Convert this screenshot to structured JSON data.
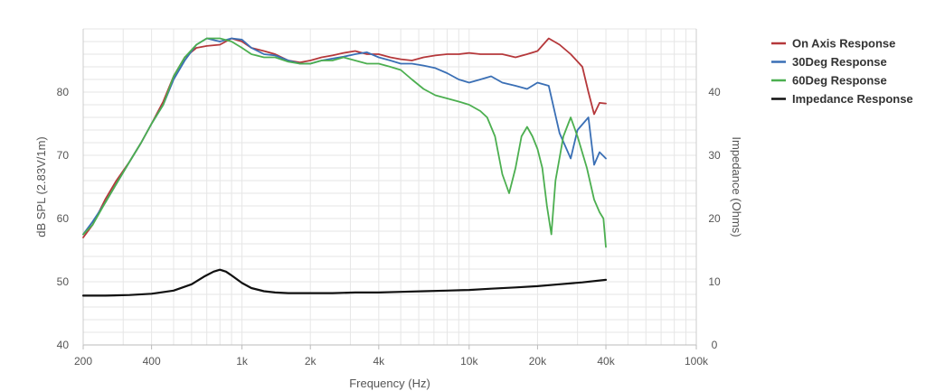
{
  "chart_data": {
    "type": "line",
    "xlabel": "Frequency (Hz)",
    "ylabel": "dB SPL (2.83V/1m)",
    "y2label": "Impedance (Ohms)",
    "xscale": "log",
    "xlim": [
      200,
      100000
    ],
    "ylim": [
      40,
      90
    ],
    "y2lim": [
      0,
      50
    ],
    "x_tick_values": [
      200,
      400,
      1000,
      2000,
      4000,
      10000,
      20000,
      40000,
      100000
    ],
    "x_tick_labels": [
      "200",
      "400",
      "1k",
      "2k",
      "4k",
      "10k",
      "20k",
      "40k",
      "100k"
    ],
    "y_tick_values": [
      40,
      50,
      60,
      70,
      80
    ],
    "y_tick_labels": [
      "40",
      "50",
      "60",
      "70",
      "80"
    ],
    "y2_tick_values": [
      0,
      10,
      20,
      30,
      40
    ],
    "y2_tick_labels": [
      "0",
      "10",
      "20",
      "30",
      "40"
    ],
    "grid": true,
    "legend_position": "top-right",
    "series": [
      {
        "name": "On Axis Response",
        "color": "#b5383b",
        "axis": "left",
        "x": [
          200,
          220,
          250,
          280,
          320,
          360,
          400,
          450,
          500,
          560,
          630,
          700,
          800,
          900,
          1000,
          1100,
          1250,
          1400,
          1600,
          1800,
          2000,
          2240,
          2500,
          2800,
          3150,
          3550,
          4000,
          4500,
          5000,
          5600,
          6300,
          7100,
          8000,
          9000,
          10000,
          11200,
          12500,
          14000,
          16000,
          18000,
          20000,
          22400,
          25000,
          28000,
          31500,
          33500,
          35500,
          37500,
          40000
        ],
        "y": [
          57,
          59,
          63,
          66,
          69,
          72,
          75,
          78.5,
          82.5,
          85.5,
          87,
          87.3,
          87.5,
          88.5,
          88,
          87,
          86.5,
          86,
          85,
          84.7,
          85,
          85.5,
          85.8,
          86.2,
          86.5,
          86,
          86,
          85.5,
          85.2,
          85,
          85.5,
          85.8,
          86,
          86,
          86.2,
          86,
          86,
          86,
          85.5,
          86,
          86.5,
          88.5,
          87.5,
          86,
          84,
          80,
          76.5,
          78.3,
          78.2
        ]
      },
      {
        "name": "30Deg Response",
        "color": "#3a6fb5",
        "axis": "left",
        "x": [
          200,
          220,
          250,
          280,
          320,
          360,
          400,
          450,
          500,
          560,
          630,
          700,
          800,
          900,
          1000,
          1100,
          1250,
          1400,
          1600,
          1800,
          2000,
          2240,
          2500,
          2800,
          3150,
          3550,
          4000,
          4500,
          5000,
          5600,
          6300,
          7100,
          8000,
          9000,
          10000,
          11200,
          12500,
          14000,
          16000,
          18000,
          20000,
          22400,
          25000,
          28000,
          30000,
          33500,
          35500,
          37500,
          40000
        ],
        "y": [
          57.5,
          59.5,
          62.5,
          65.5,
          69,
          72,
          75,
          78,
          82,
          85,
          87.5,
          88.5,
          88,
          88.5,
          88.3,
          87,
          86,
          85.8,
          85,
          84.5,
          84.5,
          85,
          85.3,
          85.6,
          86,
          86.3,
          85.5,
          85,
          84.5,
          84.5,
          84.2,
          83.8,
          83,
          82,
          81.5,
          82,
          82.5,
          81.5,
          81,
          80.5,
          81.5,
          81,
          73.5,
          69.5,
          74,
          76,
          68.5,
          70.5,
          69.5
        ]
      },
      {
        "name": "60Deg Response",
        "color": "#4caf50",
        "axis": "left",
        "x": [
          200,
          220,
          250,
          280,
          320,
          360,
          400,
          450,
          500,
          560,
          630,
          700,
          800,
          900,
          1000,
          1100,
          1250,
          1400,
          1600,
          1800,
          2000,
          2240,
          2500,
          2800,
          3150,
          3550,
          4000,
          4500,
          5000,
          5600,
          6300,
          7100,
          8000,
          9000,
          10000,
          11200,
          12000,
          13000,
          14000,
          15000,
          16000,
          17000,
          18000,
          19000,
          20000,
          21000,
          22000,
          23000,
          24000,
          26000,
          28000,
          30000,
          33000,
          35500,
          37500,
          39000,
          40000
        ],
        "y": [
          57.5,
          59,
          62.5,
          65.5,
          69,
          72,
          75,
          78,
          82.5,
          85.5,
          87.5,
          88.5,
          88.5,
          88,
          87,
          86,
          85.5,
          85.5,
          84.8,
          84.5,
          84.5,
          85,
          85,
          85.5,
          85,
          84.5,
          84.5,
          84,
          83.5,
          82,
          80.5,
          79.5,
          79,
          78.5,
          78,
          77,
          76,
          73,
          67,
          64,
          68,
          73,
          74.5,
          73,
          71,
          68,
          62,
          57.5,
          66,
          73,
          76,
          73,
          68,
          63,
          61,
          60,
          55.5
        ]
      },
      {
        "name": "Impedance Response",
        "color": "#111111",
        "axis": "right",
        "x": [
          200,
          250,
          320,
          400,
          500,
          600,
          680,
          750,
          800,
          850,
          900,
          1000,
          1100,
          1250,
          1400,
          1600,
          2000,
          2500,
          3150,
          4000,
          5000,
          6300,
          8000,
          10000,
          12500,
          16000,
          20000,
          25000,
          31500,
          40000
        ],
        "y": [
          7.8,
          7.8,
          7.9,
          8.1,
          8.6,
          9.6,
          10.8,
          11.6,
          11.9,
          11.6,
          11.0,
          9.8,
          9.0,
          8.5,
          8.3,
          8.2,
          8.2,
          8.2,
          8.3,
          8.3,
          8.4,
          8.5,
          8.6,
          8.7,
          8.9,
          9.1,
          9.3,
          9.6,
          9.9,
          10.3
        ]
      }
    ]
  }
}
